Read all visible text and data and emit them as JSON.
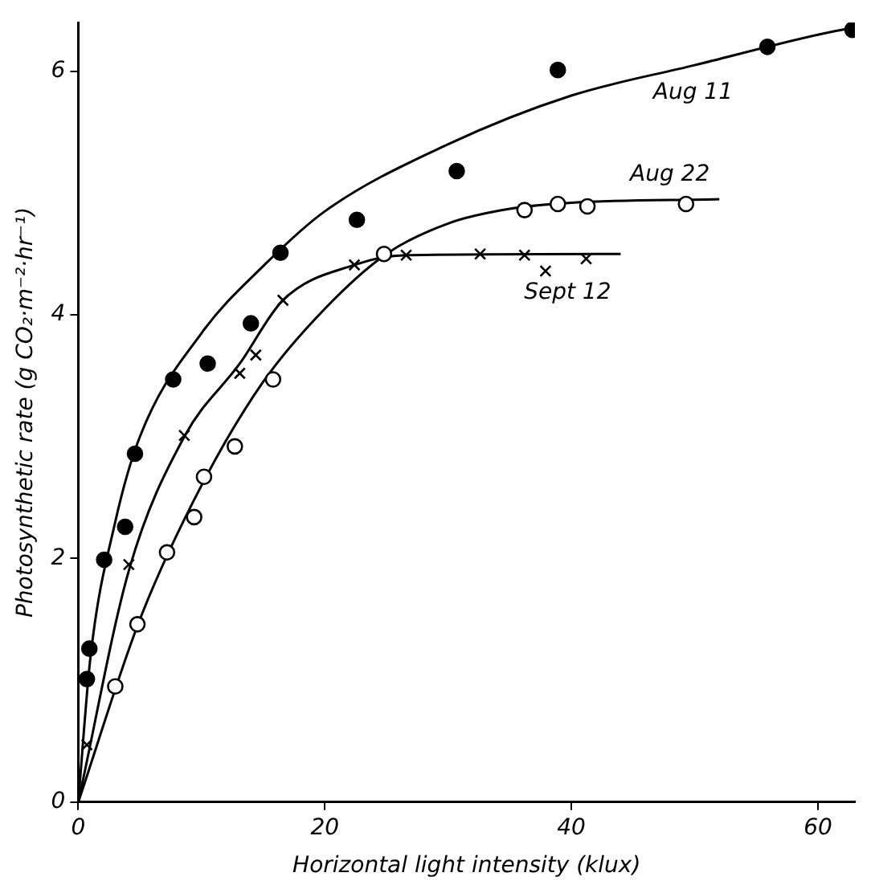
{
  "chart_data": {
    "type": "scatter",
    "xlabel": "Horizontal light intensity (klux)",
    "ylabel": "Photosynthetic rate (g CO₂·m⁻²·hr⁻¹)",
    "xlim": [
      0,
      63
    ],
    "ylim": [
      0,
      6.4
    ],
    "xticks": [
      0,
      20,
      40,
      60
    ],
    "yticks": [
      0,
      2,
      4,
      6
    ],
    "grid": false,
    "legend": false,
    "series": [
      {
        "type": "scatter",
        "marker": "circle",
        "color": "#000000",
        "x": [
          0.7,
          0.9,
          2.1,
          3.8,
          4.6,
          7.7,
          10.5,
          14.0,
          16.4,
          22.6,
          30.7,
          38.9,
          55.9,
          62.8
        ],
        "values": [
          1.01,
          1.26,
          1.99,
          2.26,
          2.86,
          3.47,
          3.6,
          3.93,
          4.51,
          4.78,
          5.18,
          6.01,
          6.2,
          6.34
        ]
      },
      {
        "type": "scatter",
        "marker": "circle",
        "color": "#ffffff",
        "x": [
          3.0,
          4.8,
          7.2,
          9.4,
          10.2,
          12.7,
          15.8,
          24.8,
          36.2,
          38.9,
          41.3,
          49.3
        ],
        "values": [
          0.95,
          1.46,
          2.05,
          2.34,
          2.67,
          2.92,
          3.47,
          4.5,
          4.86,
          4.91,
          4.89,
          4.91
        ]
      },
      {
        "type": "scatter",
        "marker": "cross",
        "color": "#000000",
        "x": [
          0.7,
          4.1,
          8.6,
          13.1,
          14.4,
          16.6,
          22.4,
          26.6,
          32.6,
          36.2,
          37.9,
          41.2
        ],
        "values": [
          0.47,
          1.95,
          3.01,
          3.52,
          3.67,
          4.12,
          4.41,
          4.49,
          4.5,
          4.49,
          4.36,
          4.46
        ]
      },
      {
        "type": "line",
        "name": "Aug 11",
        "marker": "none",
        "color": "#000000",
        "x": [
          0,
          1,
          3,
          5,
          10,
          15,
          20,
          30,
          40,
          50,
          60,
          63
        ],
        "values": [
          0,
          1.2,
          2.3,
          3.0,
          3.85,
          4.4,
          4.85,
          5.4,
          5.8,
          6.05,
          6.3,
          6.36
        ]
      },
      {
        "type": "line",
        "name": "Aug 22",
        "marker": "none",
        "color": "#000000",
        "x": [
          0,
          5,
          10,
          15,
          20,
          25,
          30,
          35,
          40,
          52
        ],
        "values": [
          0,
          1.5,
          2.6,
          3.45,
          4.05,
          4.5,
          4.75,
          4.87,
          4.92,
          4.95
        ]
      },
      {
        "type": "line",
        "name": "Sept 12",
        "marker": "none",
        "color": "#000000",
        "x": [
          0,
          4.1,
          8.6,
          13.1,
          16.6,
          22.4,
          26.6,
          44
        ],
        "values": [
          0,
          1.9,
          3.0,
          3.6,
          4.12,
          4.41,
          4.49,
          4.5
        ]
      }
    ]
  }
}
